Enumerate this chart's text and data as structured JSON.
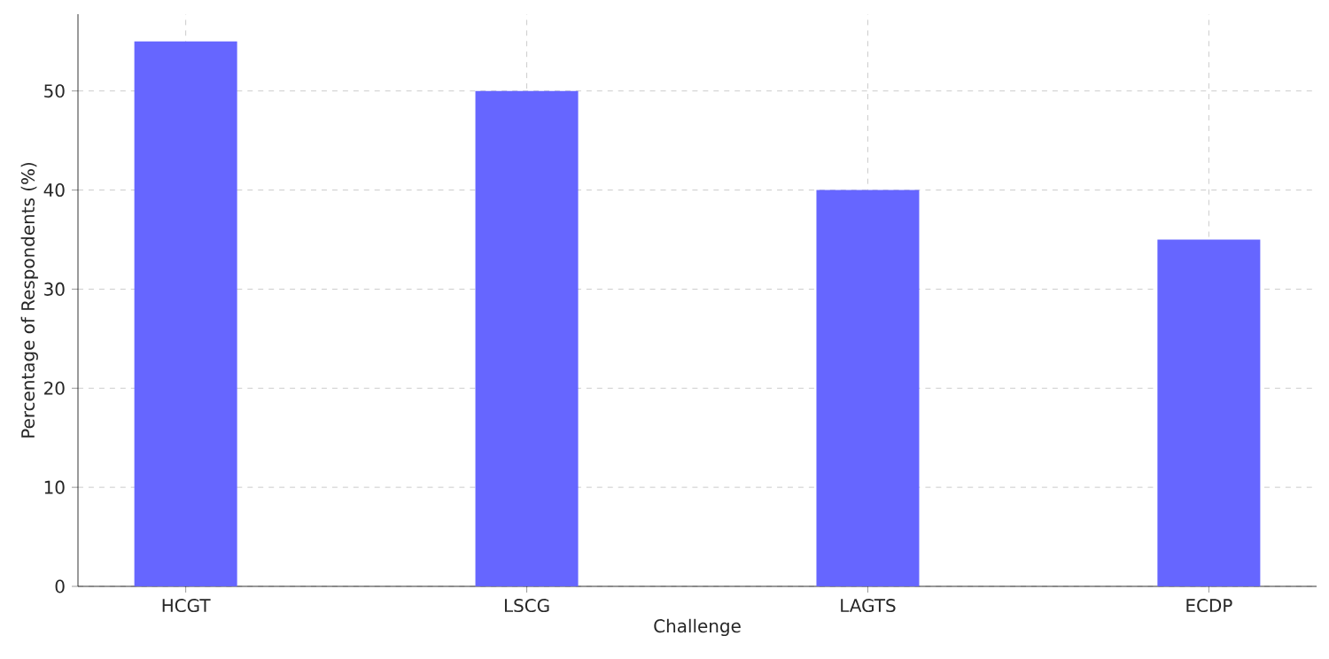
{
  "chart_data": {
    "type": "bar",
    "xlabel": "Challenge",
    "ylabel": "Percentage of Respondents (%)",
    "categories": [
      "HCGT",
      "LSCG",
      "LAGTS",
      "ECDP"
    ],
    "values": [
      55,
      50,
      40,
      35
    ],
    "color": "#6666ff",
    "ylim": [
      0,
      57.75
    ],
    "yticks": [
      0,
      10,
      20,
      30,
      40,
      50
    ],
    "grid": true
  }
}
